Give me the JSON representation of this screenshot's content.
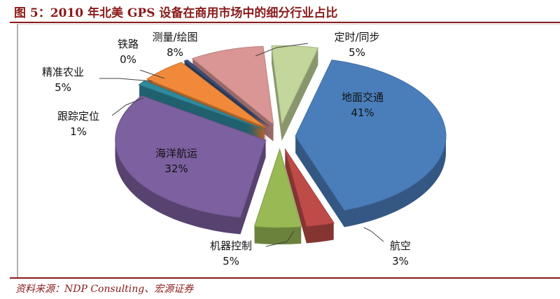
{
  "title": "图 5：2010 年北美 GPS 设备在商用市场中的细分行业占比",
  "source": "资料来源：NDP Consulting、宏源证券",
  "chart_data": {
    "type": "pie",
    "style": "3d-exploded",
    "title": "",
    "slices": [
      {
        "label": "地面交通",
        "value": 41,
        "pct": "41%",
        "color": "#4a7ebb"
      },
      {
        "label": "航空",
        "value": 3,
        "pct": "3%",
        "color": "#be4b48"
      },
      {
        "label": "机器控制",
        "value": 5,
        "pct": "5%",
        "color": "#98b954"
      },
      {
        "label": "海洋航运",
        "value": 32,
        "pct": "32%",
        "color": "#7d60a0"
      },
      {
        "label": "跟踪定位",
        "value": 1,
        "pct": "1%",
        "color": "#2f8a9e"
      },
      {
        "label": "精准农业",
        "value": 5,
        "pct": "5%",
        "color": "#f08a3a"
      },
      {
        "label": "铁路",
        "value": 0.4,
        "pct": "0%",
        "color": "#3b4f78"
      },
      {
        "label": "测量/绘图",
        "value": 8,
        "pct": "8%",
        "color": "#d99694"
      },
      {
        "label": "定时/同步",
        "value": 5,
        "pct": "5%",
        "color": "#c3d69b"
      }
    ]
  }
}
